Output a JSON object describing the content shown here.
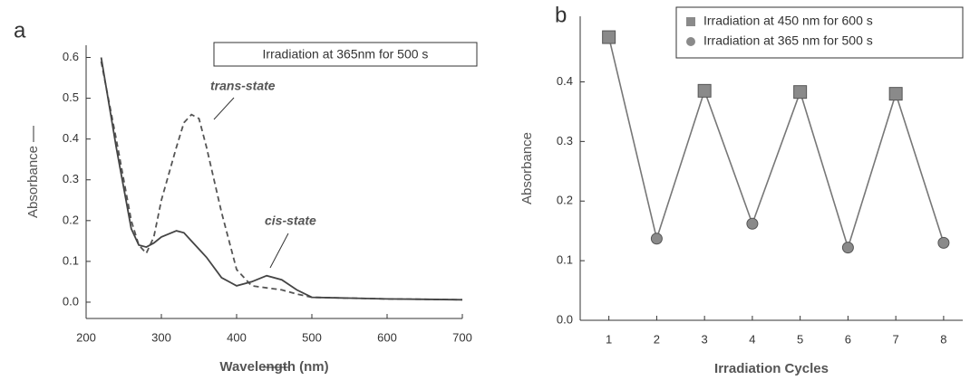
{
  "chart_data": [
    {
      "type": "line",
      "label": "a",
      "xlabel": "Wavelength (nm)",
      "ylabel": "Absorbance",
      "annotations": [
        "Irradiation at 365nm  for 500 s"
      ],
      "x": [
        220,
        240,
        260,
        270,
        280,
        290,
        300,
        320,
        330,
        340,
        350,
        360,
        380,
        400,
        420,
        440,
        460,
        480,
        500,
        550,
        600,
        650,
        700
      ],
      "series": [
        {
          "name": "trans-state",
          "color": "#555555",
          "dash": true,
          "values": [
            0.59,
            0.4,
            0.2,
            0.14,
            0.12,
            0.16,
            0.25,
            0.38,
            0.44,
            0.46,
            0.45,
            0.38,
            0.22,
            0.08,
            0.04,
            0.035,
            0.03,
            0.02,
            0.012,
            0.01,
            0.008,
            0.007,
            0.006
          ]
        },
        {
          "name": "cis-state",
          "color": "#444444",
          "dash": false,
          "values": [
            0.6,
            0.38,
            0.18,
            0.14,
            0.135,
            0.145,
            0.16,
            0.175,
            0.17,
            0.15,
            0.13,
            0.11,
            0.06,
            0.04,
            0.05,
            0.065,
            0.055,
            0.03,
            0.012,
            0.01,
            0.008,
            0.007,
            0.006
          ]
        }
      ],
      "xlim": [
        200,
        700
      ],
      "xticks": [
        200,
        300,
        400,
        500,
        600,
        700
      ],
      "ylim": [
        -0.04,
        0.63
      ],
      "yticks": [
        {
          "value": 0,
          "label": "0.0"
        },
        0.1,
        0.2,
        0.3,
        0.4,
        0.5,
        0.6
      ]
    },
    {
      "type": "scatter",
      "label": "b",
      "xlabel": "Irradiation Cycles",
      "ylabel": "Absorbance",
      "connect_all": true,
      "line_color": "#777777",
      "x": [
        1,
        2,
        3,
        4,
        5,
        6,
        7,
        8
      ],
      "series": [
        {
          "name": "Irradiation at 450 nm for 600 s",
          "color": "#8a8a8a",
          "marker": "square",
          "values": [
            0.475,
            null,
            0.385,
            null,
            0.383,
            null,
            0.38,
            null
          ]
        },
        {
          "name": "Irradiation at 365 nm for 500 s",
          "color": "#8a8a8a",
          "marker": "circle",
          "values": [
            null,
            0.137,
            null,
            0.162,
            null,
            0.122,
            null,
            0.13
          ]
        }
      ],
      "xlim": [
        0.4,
        8.4
      ],
      "xticks": [
        1,
        2,
        3,
        4,
        5,
        6,
        7,
        8
      ],
      "ylim": [
        0,
        0.51
      ],
      "yticks": [
        {
          "value": 0,
          "label": "0.0"
        },
        0.1,
        0.2,
        0.3,
        0.4
      ]
    }
  ]
}
